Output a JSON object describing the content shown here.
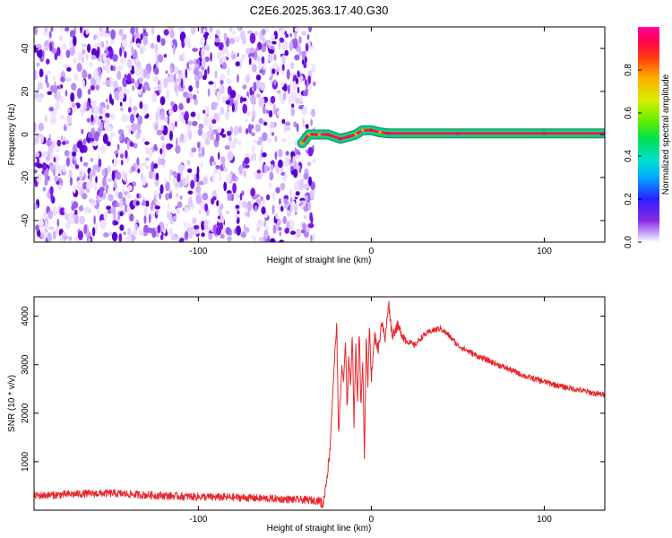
{
  "title": "C2E6.2025.363.17.40.G30",
  "colors": {
    "snr_line": "#e8262b",
    "spec_dot": "#7a18e6",
    "spec_dark": "#5a00d0"
  },
  "colorbar": {
    "label": "Normalized spectral amplitude",
    "ticks": [
      "0.0",
      "0.2",
      "0.4",
      "0.6",
      "0.8"
    ],
    "tick_values": [
      0.0,
      0.2,
      0.4,
      0.6,
      0.8
    ],
    "range": [
      0,
      1
    ]
  },
  "chart_data": [
    {
      "type": "heatmap",
      "title": "C2E6.2025.363.17.40.G30",
      "xlabel": "Height of straight line (km)",
      "ylabel": "Frequency (Hz)",
      "xlim": [
        -195,
        135
      ],
      "ylim": [
        -50,
        50
      ],
      "x_ticks": [
        -100,
        0,
        100
      ],
      "x_tick_labels": [
        "-100",
        "0",
        "100"
      ],
      "y_ticks": [
        -40,
        -20,
        0,
        20,
        40
      ],
      "y_tick_labels": [
        "-40",
        "-20",
        "0",
        "20",
        "40"
      ],
      "noise_region_x": [
        -195,
        -37
      ],
      "signal_track": [
        {
          "x": -40,
          "y": -4,
          "amplitude": 0.4
        },
        {
          "x": -36,
          "y": 0,
          "amplitude": 0.6
        },
        {
          "x": -30,
          "y": 0,
          "amplitude": 0.7
        },
        {
          "x": -25,
          "y": 0,
          "amplitude": 0.9
        },
        {
          "x": -18,
          "y": -2,
          "amplitude": 0.85
        },
        {
          "x": -13,
          "y": -1,
          "amplitude": 0.9
        },
        {
          "x": -9,
          "y": 0,
          "amplitude": 0.6
        },
        {
          "x": -5,
          "y": 2,
          "amplitude": 0.7
        },
        {
          "x": 0,
          "y": 2,
          "amplitude": 0.9
        },
        {
          "x": 5,
          "y": 1,
          "amplitude": 0.8
        },
        {
          "x": 10,
          "y": 0.5,
          "amplitude": 0.95
        },
        {
          "x": 50,
          "y": 0.5,
          "amplitude": 0.95
        },
        {
          "x": 100,
          "y": 0.5,
          "amplitude": 0.95
        },
        {
          "x": 135,
          "y": 0.5,
          "amplitude": 0.95
        }
      ],
      "grid": false
    },
    {
      "type": "line",
      "xlabel": "Height of straight line (km)",
      "ylabel": "SNR (10 * v/v)",
      "xlim": [
        -195,
        135
      ],
      "ylim": [
        0,
        4400
      ],
      "x_ticks": [
        -100,
        0,
        100
      ],
      "x_tick_labels": [
        "-100",
        "0",
        "100"
      ],
      "y_ticks": [
        1000,
        2000,
        3000,
        4000
      ],
      "y_tick_labels": [
        "1000",
        "2000",
        "3000",
        "4000"
      ],
      "series": [
        {
          "x": [
            -195,
            -180,
            -165,
            -150,
            -135,
            -120,
            -105,
            -90,
            -75,
            -60,
            -45,
            -30,
            -28,
            -26,
            -24,
            -22,
            -20,
            -19,
            -18,
            -17,
            -16,
            -15,
            -14,
            -13,
            -12,
            -11,
            -10,
            -9,
            -8,
            -7,
            -6,
            -5,
            -4,
            -3,
            -2,
            -1,
            0,
            2,
            4,
            6,
            8,
            10,
            12,
            15,
            20,
            25,
            30,
            35,
            40,
            45,
            50,
            60,
            70,
            80,
            90,
            100,
            110,
            120,
            130,
            135
          ],
          "y": [
            300,
            320,
            340,
            350,
            320,
            300,
            280,
            270,
            260,
            240,
            220,
            200,
            100,
            600,
            1200,
            2600,
            3900,
            1600,
            2200,
            3000,
            2600,
            3500,
            2100,
            3200,
            2500,
            3700,
            1800,
            3400,
            2200,
            3800,
            2000,
            3200,
            1100,
            3600,
            2500,
            3900,
            2700,
            3600,
            3300,
            3900,
            3500,
            4300,
            3600,
            3800,
            3500,
            3400,
            3600,
            3700,
            3750,
            3600,
            3400,
            3200,
            3050,
            2900,
            2750,
            2650,
            2550,
            2480,
            2400,
            2380
          ]
        }
      ],
      "grid": false
    }
  ]
}
